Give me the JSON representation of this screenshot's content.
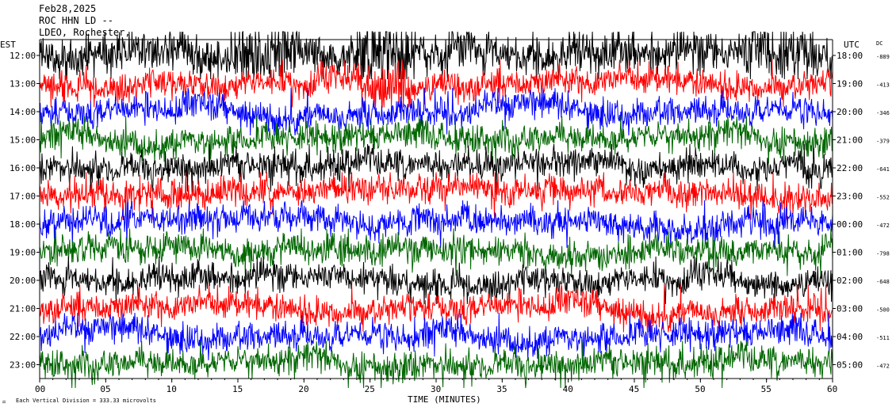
{
  "header": {
    "date": "Feb28,2025",
    "station": "ROC HHN LD --",
    "network": "LDEO, Rochester,"
  },
  "left_zone_label": "EST",
  "right_zone_label": "UTC",
  "dc_header": "DC",
  "footer_note": "Each Vertical Division =  333.33 microvolts",
  "colors": {
    "trace_cycle": [
      "#000000",
      "#ff0000",
      "#0000ff",
      "#006600"
    ],
    "background": "#ffffff"
  },
  "chart_data": {
    "type": "line",
    "title": "",
    "xlabel": "TIME (MINUTES)",
    "ylabel": "",
    "xlim": [
      0,
      60
    ],
    "x_ticks": [
      "00",
      "05",
      "10",
      "15",
      "20",
      "25",
      "30",
      "35",
      "40",
      "45",
      "50",
      "55",
      "60"
    ],
    "rows": [
      {
        "est": "12:00",
        "utc": "18:00",
        "dc": "-889"
      },
      {
        "est": "13:00",
        "utc": "19:00",
        "dc": "-413"
      },
      {
        "est": "14:00",
        "utc": "20:00",
        "dc": "-346"
      },
      {
        "est": "15:00",
        "utc": "21:00",
        "dc": "-379"
      },
      {
        "est": "16:00",
        "utc": "22:00",
        "dc": "-641"
      },
      {
        "est": "17:00",
        "utc": "23:00",
        "dc": "-552"
      },
      {
        "est": "18:00",
        "utc": "00:00",
        "dc": "-472"
      },
      {
        "est": "19:00",
        "utc": "01:00",
        "dc": "-798"
      },
      {
        "est": "20:00",
        "utc": "02:00",
        "dc": "-648"
      },
      {
        "est": "21:00",
        "utc": "03:00",
        "dc": "-500"
      },
      {
        "est": "22:00",
        "utc": "04:00",
        "dc": "-511"
      },
      {
        "est": "23:00",
        "utc": "05:00",
        "dc": "-472"
      }
    ]
  }
}
